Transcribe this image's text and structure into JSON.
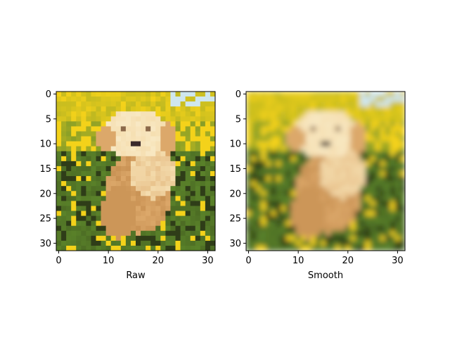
{
  "chart_data": [
    {
      "type": "heatmap",
      "subtitle": "",
      "xlabel": "Raw",
      "ylabel": "",
      "xlim": [
        -0.5,
        31.5
      ],
      "ylim": [
        31.5,
        -0.5
      ],
      "xticks": [
        0,
        10,
        20,
        30
      ],
      "yticks": [
        0,
        5,
        10,
        15,
        20,
        25,
        30
      ],
      "interpolation": "nearest",
      "grid": false,
      "image": "32x32 RGB photo of a golden puppy sitting among yellow flowers and green leaves"
    },
    {
      "type": "heatmap",
      "subtitle": "",
      "xlabel": "Smooth",
      "ylabel": "",
      "xlim": [
        -0.5,
        31.5
      ],
      "ylim": [
        31.5,
        -0.5
      ],
      "xticks": [
        0,
        10,
        20,
        30
      ],
      "yticks": [
        0,
        5,
        10,
        15,
        20,
        25,
        30
      ],
      "interpolation": "bilinear",
      "grid": false,
      "image": "32x32 RGB photo of a golden puppy sitting among yellow flowers and green leaves"
    }
  ],
  "colors": {
    "sky": "#cfe6ee",
    "flower_yellow": "#f4d21a",
    "leaf_green": "#5f8a2c",
    "dark_leaf": "#2f3d18",
    "puppy_light": "#f5deb0",
    "puppy_mid": "#dca86a",
    "puppy_shadow": "#b47a3c",
    "eye_nose": "#3a2a2a"
  }
}
